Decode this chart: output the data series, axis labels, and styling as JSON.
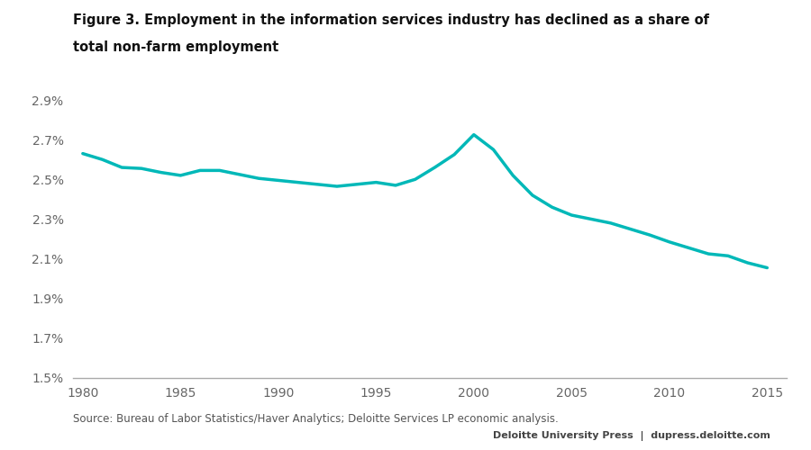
{
  "title_line1": "Figure 3. Employment in the information services industry has declined as a share of",
  "title_line2": "total non-farm employment",
  "source_text": "Source: Bureau of Labor Statistics/Haver Analytics; Deloitte Services LP economic analysis.",
  "footer_text": "Deloitte University Press  |  dupress.deloitte.com",
  "line_color": "#00B8B8",
  "line_width": 2.5,
  "background_color": "#ffffff",
  "plot_bg_color": "#ffffff",
  "ylim": [
    1.5,
    2.95
  ],
  "yticks": [
    1.5,
    1.7,
    1.9,
    2.1,
    2.3,
    2.5,
    2.7,
    2.9
  ],
  "xticks": [
    1980,
    1985,
    1990,
    1995,
    2000,
    2005,
    2010,
    2015
  ],
  "xlim": [
    1979.5,
    2016.0
  ],
  "years": [
    1980,
    1981,
    1982,
    1983,
    1984,
    1985,
    1986,
    1987,
    1988,
    1989,
    1990,
    1991,
    1992,
    1993,
    1994,
    1995,
    1996,
    1997,
    1998,
    1999,
    2000,
    2001,
    2002,
    2003,
    2004,
    2005,
    2006,
    2007,
    2008,
    2009,
    2010,
    2011,
    2012,
    2013,
    2014,
    2015
  ],
  "values": [
    2.63,
    2.6,
    2.56,
    2.555,
    2.535,
    2.52,
    2.545,
    2.545,
    2.525,
    2.505,
    2.495,
    2.485,
    2.475,
    2.465,
    2.475,
    2.485,
    2.47,
    2.5,
    2.56,
    2.625,
    2.725,
    2.65,
    2.52,
    2.42,
    2.36,
    2.32,
    2.3,
    2.28,
    2.25,
    2.22,
    2.185,
    2.155,
    2.125,
    2.115,
    2.08,
    2.055
  ]
}
